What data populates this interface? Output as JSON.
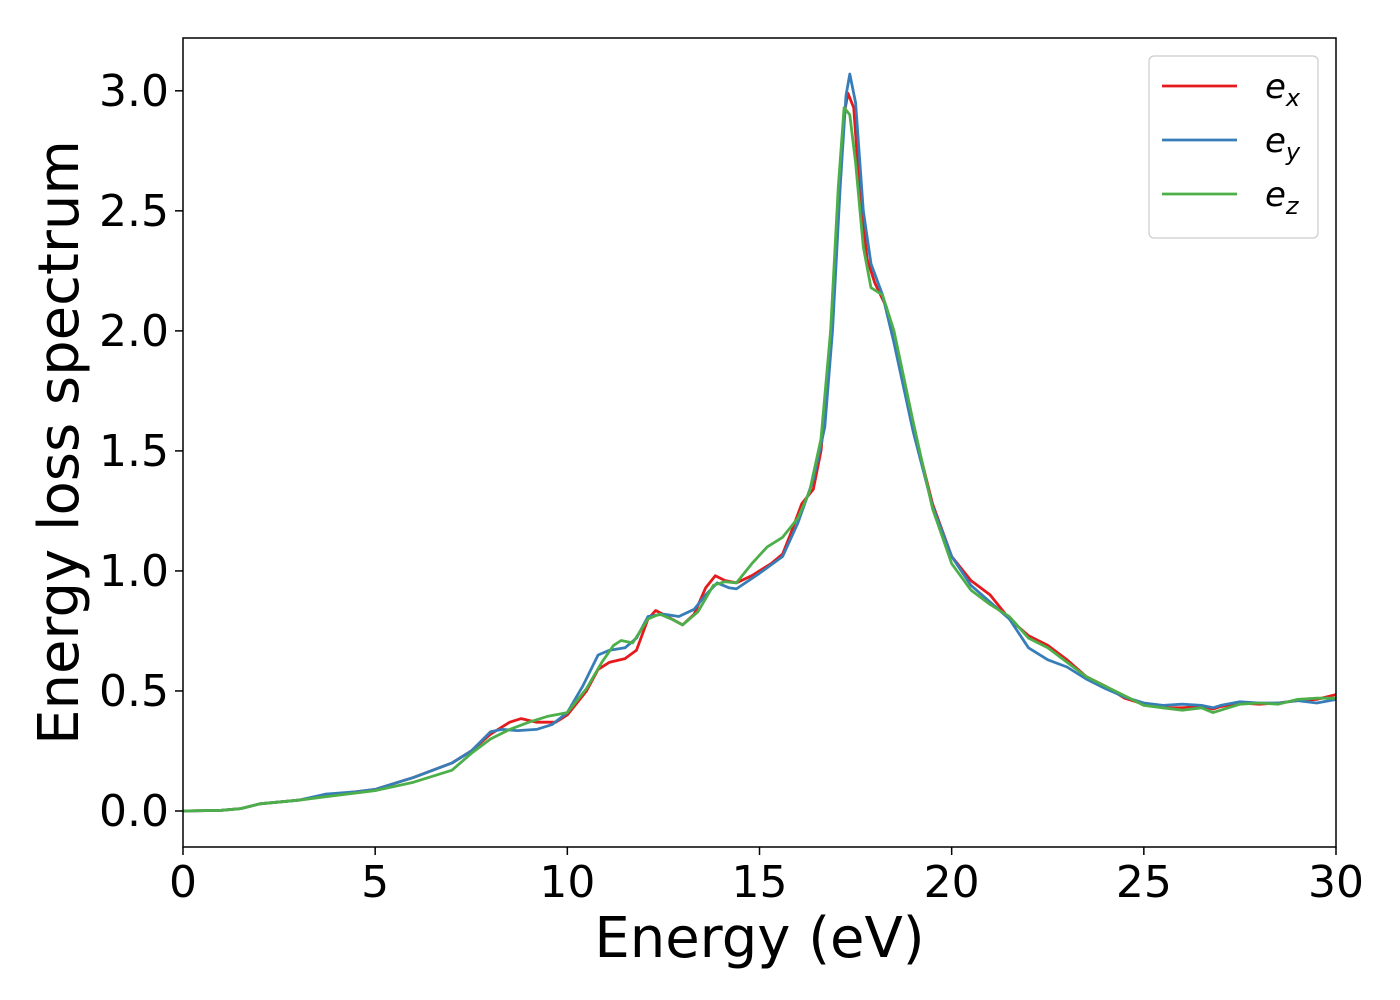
{
  "chart_data": {
    "type": "line",
    "title": "",
    "xlabel": "Energy (eV)",
    "ylabel": "Energy loss spectrum",
    "xlim": [
      0,
      30
    ],
    "ylim": [
      -0.15,
      3.22
    ],
    "xticks": [
      0,
      5,
      10,
      15,
      20,
      25,
      30
    ],
    "xtick_labels": [
      "0",
      "5",
      "10",
      "15",
      "20",
      "25",
      "30"
    ],
    "yticks": [
      0.0,
      0.5,
      1.0,
      1.5,
      2.0,
      2.5,
      3.0
    ],
    "ytick_labels": [
      "0.0",
      "0.5",
      "1.0",
      "1.5",
      "2.0",
      "2.5",
      "3.0"
    ],
    "grid": false,
    "legend_position": "top-right",
    "series": [
      {
        "name": "e_x",
        "legend_base": "e",
        "legend_sub": "x",
        "color": "#e41a1c",
        "points": [
          [
            0,
            0
          ],
          [
            1,
            0.003
          ],
          [
            1.5,
            0.01
          ],
          [
            2,
            0.03
          ],
          [
            3,
            0.045
          ],
          [
            4,
            0.07
          ],
          [
            5,
            0.09
          ],
          [
            6,
            0.14
          ],
          [
            7,
            0.2
          ],
          [
            7.5,
            0.25
          ],
          [
            8,
            0.32
          ],
          [
            8.5,
            0.37
          ],
          [
            8.8,
            0.385
          ],
          [
            9.2,
            0.37
          ],
          [
            9.7,
            0.37
          ],
          [
            10,
            0.4
          ],
          [
            10.5,
            0.5
          ],
          [
            10.8,
            0.59
          ],
          [
            11.1,
            0.62
          ],
          [
            11.5,
            0.635
          ],
          [
            11.8,
            0.67
          ],
          [
            12.1,
            0.8
          ],
          [
            12.3,
            0.835
          ],
          [
            12.6,
            0.81
          ],
          [
            13,
            0.775
          ],
          [
            13.3,
            0.82
          ],
          [
            13.6,
            0.93
          ],
          [
            13.85,
            0.98
          ],
          [
            14.1,
            0.96
          ],
          [
            14.4,
            0.95
          ],
          [
            14.8,
            0.98
          ],
          [
            15.3,
            1.03
          ],
          [
            15.6,
            1.07
          ],
          [
            15.8,
            1.15
          ],
          [
            16.1,
            1.28
          ],
          [
            16.4,
            1.34
          ],
          [
            16.6,
            1.5
          ],
          [
            16.8,
            1.85
          ],
          [
            17.0,
            2.4
          ],
          [
            17.2,
            2.9
          ],
          [
            17.3,
            2.99
          ],
          [
            17.45,
            2.93
          ],
          [
            17.6,
            2.6
          ],
          [
            17.8,
            2.3
          ],
          [
            18.0,
            2.2
          ],
          [
            18.3,
            2.1
          ],
          [
            18.6,
            1.9
          ],
          [
            19,
            1.6
          ],
          [
            19.5,
            1.28
          ],
          [
            20,
            1.06
          ],
          [
            20.5,
            0.96
          ],
          [
            21,
            0.9
          ],
          [
            21.5,
            0.8
          ],
          [
            22,
            0.73
          ],
          [
            22.5,
            0.69
          ],
          [
            23,
            0.63
          ],
          [
            23.5,
            0.56
          ],
          [
            24,
            0.52
          ],
          [
            24.5,
            0.47
          ],
          [
            25,
            0.445
          ],
          [
            25.5,
            0.43
          ],
          [
            26,
            0.43
          ],
          [
            26.5,
            0.435
          ],
          [
            26.8,
            0.425
          ],
          [
            27,
            0.435
          ],
          [
            27.5,
            0.45
          ],
          [
            28,
            0.445
          ],
          [
            28.5,
            0.45
          ],
          [
            29,
            0.46
          ],
          [
            29.5,
            0.465
          ],
          [
            30,
            0.485
          ]
        ]
      },
      {
        "name": "e_y",
        "legend_base": "e",
        "legend_sub": "y",
        "color": "#377eb8",
        "points": [
          [
            0,
            0
          ],
          [
            1,
            0.003
          ],
          [
            1.5,
            0.01
          ],
          [
            2,
            0.03
          ],
          [
            3,
            0.045
          ],
          [
            3.7,
            0.07
          ],
          [
            4.5,
            0.08
          ],
          [
            5,
            0.09
          ],
          [
            6,
            0.14
          ],
          [
            7,
            0.2
          ],
          [
            7.5,
            0.25
          ],
          [
            8,
            0.33
          ],
          [
            8.3,
            0.34
          ],
          [
            8.7,
            0.335
          ],
          [
            9.2,
            0.34
          ],
          [
            9.6,
            0.36
          ],
          [
            10,
            0.41
          ],
          [
            10.4,
            0.52
          ],
          [
            10.8,
            0.65
          ],
          [
            11.1,
            0.67
          ],
          [
            11.5,
            0.68
          ],
          [
            11.8,
            0.72
          ],
          [
            12.1,
            0.81
          ],
          [
            12.5,
            0.82
          ],
          [
            12.9,
            0.81
          ],
          [
            13.3,
            0.84
          ],
          [
            13.6,
            0.9
          ],
          [
            13.9,
            0.95
          ],
          [
            14.2,
            0.93
          ],
          [
            14.4,
            0.925
          ],
          [
            15,
            0.99
          ],
          [
            15.6,
            1.06
          ],
          [
            16,
            1.2
          ],
          [
            16.4,
            1.38
          ],
          [
            16.7,
            1.6
          ],
          [
            16.9,
            2.0
          ],
          [
            17.1,
            2.6
          ],
          [
            17.25,
            2.98
          ],
          [
            17.35,
            3.07
          ],
          [
            17.5,
            2.95
          ],
          [
            17.7,
            2.5
          ],
          [
            17.9,
            2.28
          ],
          [
            18.2,
            2.15
          ],
          [
            18.5,
            1.95
          ],
          [
            19,
            1.58
          ],
          [
            19.5,
            1.27
          ],
          [
            20,
            1.06
          ],
          [
            20.5,
            0.94
          ],
          [
            21,
            0.87
          ],
          [
            21.5,
            0.8
          ],
          [
            22,
            0.68
          ],
          [
            22.5,
            0.63
          ],
          [
            23,
            0.6
          ],
          [
            23.5,
            0.55
          ],
          [
            24,
            0.51
          ],
          [
            24.5,
            0.475
          ],
          [
            25,
            0.45
          ],
          [
            25.5,
            0.44
          ],
          [
            26,
            0.445
          ],
          [
            26.5,
            0.44
          ],
          [
            26.8,
            0.43
          ],
          [
            27,
            0.44
          ],
          [
            27.5,
            0.455
          ],
          [
            28,
            0.45
          ],
          [
            28.5,
            0.45
          ],
          [
            29,
            0.46
          ],
          [
            29.5,
            0.45
          ],
          [
            30,
            0.465
          ]
        ]
      },
      {
        "name": "e_z",
        "legend_base": "e",
        "legend_sub": "z",
        "color": "#4daf4a",
        "points": [
          [
            0,
            0
          ],
          [
            1,
            0.003
          ],
          [
            1.5,
            0.01
          ],
          [
            2,
            0.03
          ],
          [
            3,
            0.045
          ],
          [
            4,
            0.065
          ],
          [
            5,
            0.085
          ],
          [
            6,
            0.12
          ],
          [
            7,
            0.17
          ],
          [
            7.5,
            0.24
          ],
          [
            8,
            0.3
          ],
          [
            8.5,
            0.34
          ],
          [
            9,
            0.37
          ],
          [
            9.5,
            0.395
          ],
          [
            10,
            0.41
          ],
          [
            10.5,
            0.51
          ],
          [
            10.9,
            0.62
          ],
          [
            11.2,
            0.69
          ],
          [
            11.4,
            0.71
          ],
          [
            11.7,
            0.7
          ],
          [
            12.1,
            0.8
          ],
          [
            12.4,
            0.82
          ],
          [
            12.7,
            0.8
          ],
          [
            13,
            0.775
          ],
          [
            13.4,
            0.83
          ],
          [
            13.8,
            0.94
          ],
          [
            14.1,
            0.955
          ],
          [
            14.4,
            0.95
          ],
          [
            14.8,
            1.03
          ],
          [
            15.2,
            1.1
          ],
          [
            15.6,
            1.14
          ],
          [
            16,
            1.22
          ],
          [
            16.3,
            1.33
          ],
          [
            16.6,
            1.55
          ],
          [
            16.85,
            2.0
          ],
          [
            17.05,
            2.6
          ],
          [
            17.2,
            2.93
          ],
          [
            17.35,
            2.9
          ],
          [
            17.5,
            2.7
          ],
          [
            17.7,
            2.35
          ],
          [
            17.9,
            2.18
          ],
          [
            18.2,
            2.15
          ],
          [
            18.5,
            2.0
          ],
          [
            19,
            1.62
          ],
          [
            19.5,
            1.26
          ],
          [
            20,
            1.03
          ],
          [
            20.5,
            0.92
          ],
          [
            21,
            0.86
          ],
          [
            21.5,
            0.81
          ],
          [
            22,
            0.72
          ],
          [
            22.5,
            0.68
          ],
          [
            23,
            0.62
          ],
          [
            23.5,
            0.56
          ],
          [
            24,
            0.52
          ],
          [
            24.5,
            0.48
          ],
          [
            25,
            0.44
          ],
          [
            25.5,
            0.43
          ],
          [
            26,
            0.42
          ],
          [
            26.5,
            0.43
          ],
          [
            26.8,
            0.41
          ],
          [
            27,
            0.42
          ],
          [
            27.5,
            0.445
          ],
          [
            28,
            0.45
          ],
          [
            28.5,
            0.445
          ],
          [
            29,
            0.465
          ],
          [
            29.5,
            0.47
          ],
          [
            30,
            0.47
          ]
        ]
      }
    ]
  }
}
